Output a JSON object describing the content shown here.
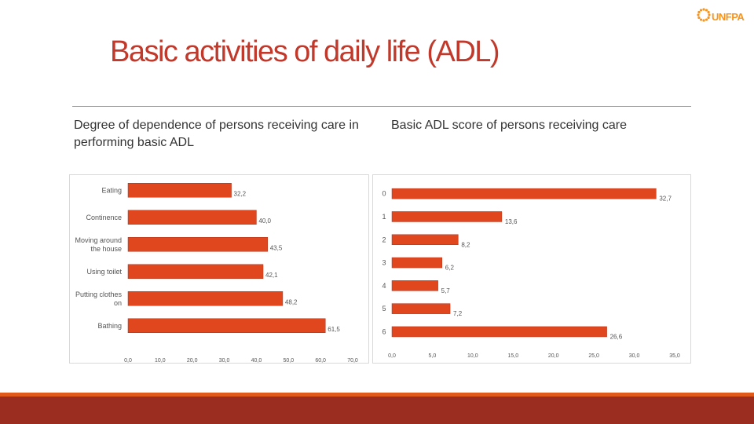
{
  "slide": {
    "title": "Basic activities of daily life (ADL)",
    "subtitle_left": "Degree of dependence of persons receiving care in performing basic ADL",
    "subtitle_right": "Basic ADL score of persons receiving care",
    "logo_text": "UNFPA"
  },
  "colors": {
    "bar_fill": "#e0471f",
    "bar_edge": "#b0321a",
    "title": "#c0392b",
    "logo": "#f7941d",
    "footer": "#9b2d20",
    "footer_top": "#e05a1e"
  },
  "chart_data": [
    {
      "type": "bar",
      "orientation": "horizontal",
      "title": "Degree of dependence of persons receiving care in performing basic ADL",
      "categories": [
        "Eating",
        "Continence",
        "Moving around the house",
        "Using toilet",
        "Putting clothes on",
        "Bathing"
      ],
      "category_lines": [
        [
          "Eating"
        ],
        [
          "Continence"
        ],
        [
          "Moving around",
          "the house"
        ],
        [
          "Using toilet"
        ],
        [
          "Putting clothes",
          "on"
        ],
        [
          "Bathing"
        ]
      ],
      "values": [
        32.2,
        40.0,
        43.5,
        42.1,
        48.2,
        61.5
      ],
      "value_labels": [
        "32,2",
        "40,0",
        "43,5",
        "42,1",
        "48,2",
        "61,5"
      ],
      "xlim": [
        0,
        70
      ],
      "ticks": [
        "0,0",
        "10,0",
        "20,0",
        "30,0",
        "40,0",
        "50,0",
        "60,0",
        "70,0"
      ],
      "xlabel": "",
      "ylabel": ""
    },
    {
      "type": "bar",
      "orientation": "horizontal",
      "title": "Basic ADL score of persons receiving care",
      "categories": [
        "0",
        "1",
        "2",
        "3",
        "4",
        "5",
        "6"
      ],
      "values": [
        32.7,
        13.6,
        8.2,
        6.2,
        5.7,
        7.2,
        26.6
      ],
      "value_labels": [
        "32,7",
        "13,6",
        "8,2",
        "6,2",
        "5,7",
        "7,2",
        "26,6"
      ],
      "xlim": [
        0,
        35
      ],
      "ticks": [
        "0,0",
        "5,0",
        "10,0",
        "15,0",
        "20,0",
        "25,0",
        "30,0",
        "35,0"
      ],
      "xlabel": "",
      "ylabel": ""
    }
  ]
}
